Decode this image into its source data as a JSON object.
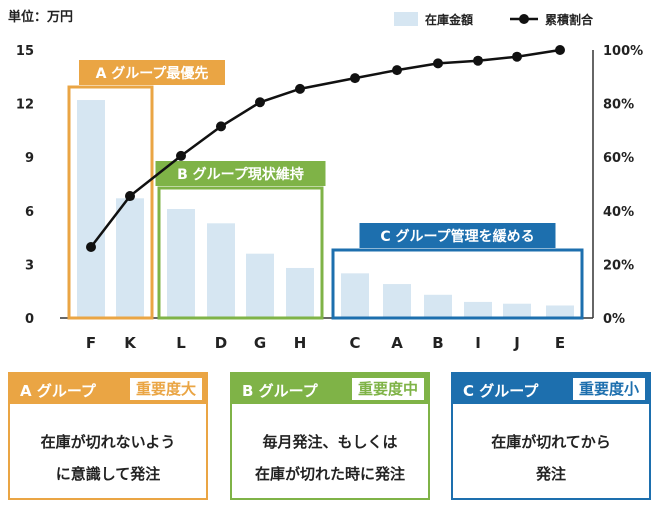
{
  "unit_label": "単位：万円",
  "colors": {
    "bar": "#d6e6f2",
    "line": "#111111",
    "group_a": "#eaa544",
    "group_b": "#7fb347",
    "group_c": "#1d6fae",
    "axis": "#333333"
  },
  "chart_data": {
    "type": "bar",
    "categories": [
      "F",
      "K",
      "L",
      "D",
      "G",
      "H",
      "C",
      "A",
      "B",
      "I",
      "J",
      "E"
    ],
    "series": [
      {
        "name": "在庫金額",
        "type": "bar",
        "axis": "left",
        "values": [
          12.2,
          6.7,
          6.1,
          5.3,
          3.6,
          2.8,
          2.5,
          1.9,
          1.3,
          0.9,
          0.8,
          0.7
        ]
      },
      {
        "name": "累積割合",
        "type": "line",
        "axis": "right",
        "values": [
          26.5,
          45.5,
          60.5,
          71.5,
          80.5,
          85.5,
          89.5,
          92.5,
          95,
          96,
          97.5,
          100
        ]
      }
    ],
    "ylim": [
      0,
      15
    ],
    "yticks": [
      "0",
      "3",
      "6",
      "9",
      "12",
      "15"
    ],
    "y2lim": [
      0,
      100
    ],
    "y2ticks": [
      "0%",
      "20%",
      "40%",
      "60%",
      "80%",
      "100%"
    ],
    "legend_position": "top-right",
    "groups": [
      {
        "label": "A グループ最優先",
        "from": "F",
        "to": "K",
        "color": "#eaa544"
      },
      {
        "label": "B グループ現状維持",
        "from": "L",
        "to": "H",
        "color": "#7fb347"
      },
      {
        "label": "C グループ管理を緩める",
        "from": "C",
        "to": "E",
        "color": "#1d6fae"
      }
    ]
  },
  "boxes": [
    {
      "label": "A グループ",
      "badge": "重要度大",
      "lines": [
        "在庫が切れないよう",
        "に意識して発注"
      ],
      "color": "#eaa544"
    },
    {
      "label": "B グループ",
      "badge": "重要度中",
      "lines": [
        "毎月発注、もしくは",
        "在庫が切れた時に発注"
      ],
      "color": "#7fb347"
    },
    {
      "label": "C グループ",
      "badge": "重要度小",
      "lines": [
        "在庫が切れてから",
        "発注"
      ],
      "color": "#1d6fae"
    }
  ]
}
